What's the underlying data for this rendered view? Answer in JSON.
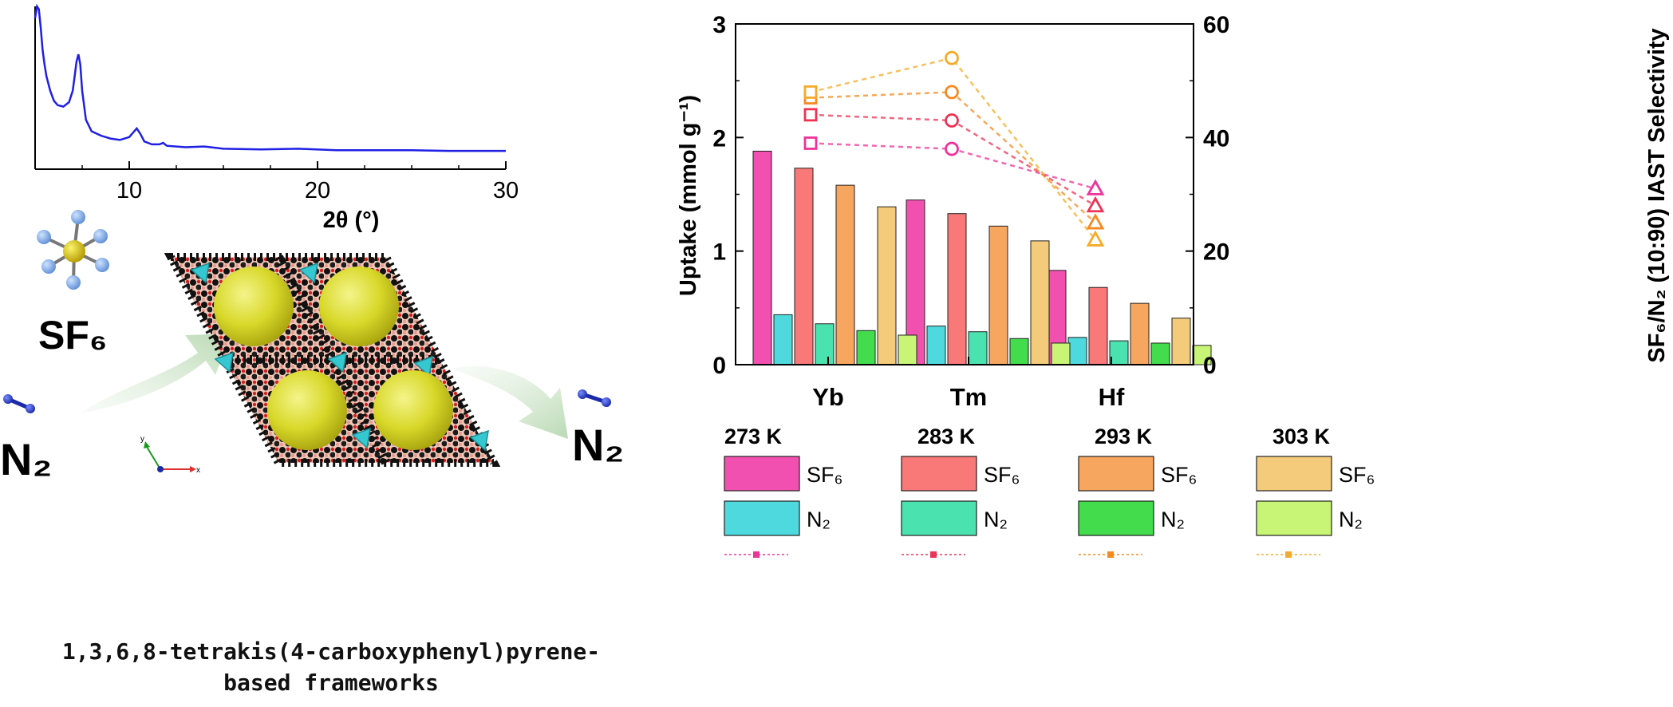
{
  "chart_data": [
    {
      "type": "line",
      "xlabel": "2θ (°)",
      "ylabel": "",
      "xlim": [
        5,
        30
      ],
      "xticks": [
        "10",
        "20",
        "30"
      ],
      "grid": false,
      "series": [
        {
          "color": "#1f1fe6",
          "x": [
            5.0,
            5.1,
            5.2,
            5.3,
            5.4,
            5.5,
            5.6,
            5.8,
            6.0,
            6.2,
            6.5,
            6.8,
            7.0,
            7.1,
            7.2,
            7.3,
            7.4,
            7.5,
            7.7,
            8.0,
            8.5,
            9.0,
            9.5,
            10.0,
            10.2,
            10.4,
            10.6,
            10.8,
            11.2,
            11.6,
            11.8,
            12.0,
            13.0,
            14.0,
            15.0,
            17.0,
            19.0,
            21.0,
            23.0,
            25.0,
            27.0,
            29.0,
            30.0
          ],
          "y": [
            0.92,
            1.0,
            0.98,
            0.85,
            0.7,
            0.6,
            0.52,
            0.42,
            0.35,
            0.32,
            0.31,
            0.34,
            0.42,
            0.52,
            0.62,
            0.67,
            0.6,
            0.42,
            0.22,
            0.14,
            0.11,
            0.09,
            0.08,
            0.1,
            0.13,
            0.16,
            0.12,
            0.07,
            0.05,
            0.05,
            0.06,
            0.04,
            0.03,
            0.035,
            0.02,
            0.015,
            0.02,
            0.01,
            0.01,
            0.01,
            0.005,
            0.005,
            0.005
          ]
        }
      ]
    },
    {
      "type": "bar",
      "title": "",
      "categories": [
        "Yb",
        "Tm",
        "Hf"
      ],
      "ylabel_left": "Uptake (mmol g⁻¹)",
      "ylim_left": [
        0,
        3
      ],
      "yticks_left": [
        "0",
        "1",
        "2",
        "3"
      ],
      "ylabel_right": "SF₆/N₂ (10:90) IAST Selectivity",
      "ylim_right": [
        0,
        60
      ],
      "yticks_right": [
        "0",
        "20",
        "40",
        "60"
      ],
      "bar_series": [
        {
          "name": "SF₆",
          "temp": "273 K",
          "color": "#f250b0",
          "values": [
            1.88,
            1.45,
            0.83
          ]
        },
        {
          "name": "SF₆",
          "temp": "283 K",
          "color": "#f97878",
          "values": [
            1.73,
            1.33,
            0.68
          ]
        },
        {
          "name": "SF₆",
          "temp": "293 K",
          "color": "#f7a660",
          "values": [
            1.58,
            1.22,
            0.54
          ]
        },
        {
          "name": "SF₆",
          "temp": "303 K",
          "color": "#f3cb7a",
          "values": [
            1.39,
            1.09,
            0.41
          ]
        },
        {
          "name": "N₂",
          "temp": "273 K",
          "color": "#4dd9dd",
          "values": [
            0.44,
            0.34,
            0.24
          ]
        },
        {
          "name": "N₂",
          "temp": "283 K",
          "color": "#4ae3b0",
          "values": [
            0.36,
            0.29,
            0.21
          ]
        },
        {
          "name": "N₂",
          "temp": "293 K",
          "color": "#43dc4d",
          "values": [
            0.3,
            0.23,
            0.19
          ]
        },
        {
          "name": "N₂",
          "temp": "303 K",
          "color": "#c8f576",
          "values": [
            0.26,
            0.19,
            0.17
          ]
        }
      ],
      "selectivity_series": [
        {
          "temp": "273 K",
          "color": "#ee3399",
          "values": [
            39,
            38,
            31
          ]
        },
        {
          "temp": "283 K",
          "color": "#ee3355",
          "values": [
            44,
            43,
            28
          ]
        },
        {
          "temp": "293 K",
          "color": "#f58a22",
          "values": [
            47,
            48,
            25
          ]
        },
        {
          "temp": "303 K",
          "color": "#f5ab2a",
          "values": [
            48,
            54,
            22
          ]
        }
      ],
      "selectivity_markers": [
        "square",
        "circle",
        "triangle"
      ],
      "legend": {
        "temps": [
          "273 K",
          "283 K",
          "293 K",
          "303 K"
        ],
        "sf6_label": "SF₆",
        "n2_label": "N₂"
      }
    }
  ],
  "scheme": {
    "sf6_label": "SF₆",
    "n2_left_label": "N₂",
    "n2_right_label": "N₂",
    "axis_y": "y",
    "axis_x": "x",
    "caption_line1": "1,3,6,8-tetrakis(4-carboxyphenyl)pyrene-",
    "caption_line2": "based frameworks"
  }
}
